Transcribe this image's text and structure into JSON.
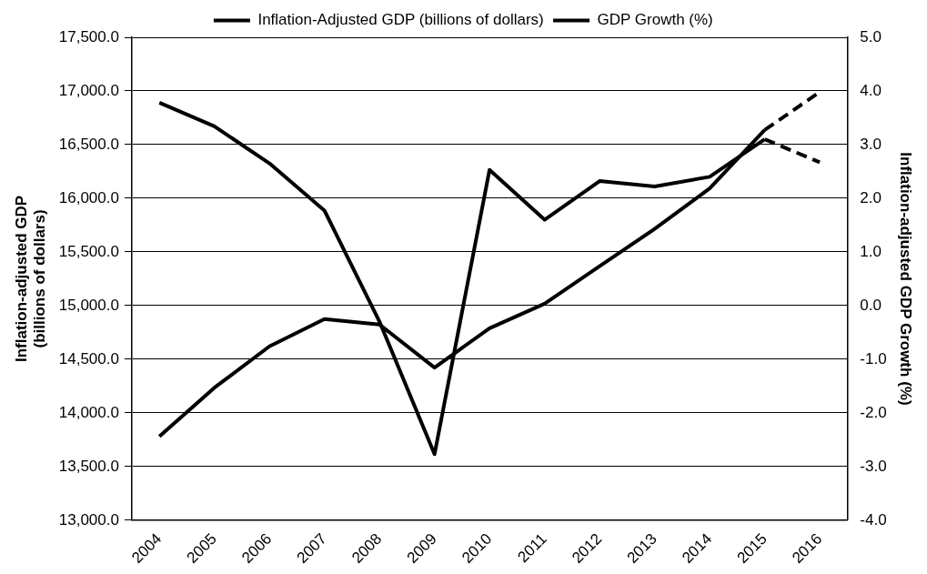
{
  "chart_data": {
    "type": "line",
    "categories": [
      "2004",
      "2005",
      "2006",
      "2007",
      "2008",
      "2009",
      "2010",
      "2011",
      "2012",
      "2013",
      "2014",
      "2015",
      "2016"
    ],
    "ylabel": "Inflation-adjusted GDP (billions of dollars)",
    "y2label": "Inflation-adjusted GDP Growth (%)",
    "ylim": [
      13000,
      17500
    ],
    "yticks": [
      {
        "value": 13000,
        "label": "13,000.0"
      },
      {
        "value": 13500,
        "label": "13,500.0"
      },
      {
        "value": 14000,
        "label": "14,000.0"
      },
      {
        "value": 14500,
        "label": "14,500.0"
      },
      {
        "value": 15000,
        "label": "15,000.0"
      },
      {
        "value": 15500,
        "label": "15,500.0"
      },
      {
        "value": 16000,
        "label": "16,000.0"
      },
      {
        "value": 16500,
        "label": "16,500.0"
      },
      {
        "value": 17000,
        "label": "17,000.0"
      },
      {
        "value": 17500,
        "label": "17,500.0"
      }
    ],
    "y2lim": [
      -4,
      5
    ],
    "y2ticks": [
      {
        "value": -4,
        "label": "-4.0"
      },
      {
        "value": -3,
        "label": "-3.0"
      },
      {
        "value": -2,
        "label": "-2.0"
      },
      {
        "value": -1,
        "label": "-1.0"
      },
      {
        "value": 0,
        "label": "0.0"
      },
      {
        "value": 1,
        "label": "1.0"
      },
      {
        "value": 2,
        "label": "2.0"
      },
      {
        "value": 3,
        "label": "3.0"
      },
      {
        "value": 4,
        "label": "4.0"
      },
      {
        "value": 5,
        "label": "5.0"
      }
    ],
    "grid": "y",
    "legend": "top",
    "marker": "none",
    "series": [
      {
        "name": "Inflation-Adjusted GDP (billions of dollars)",
        "color": "#000000",
        "values": [
          13780,
          14235,
          14620,
          14874,
          14823,
          14422,
          14789,
          15017,
          15367,
          15714,
          16092,
          16636,
          null
        ]
      },
      {
        "name": "GDP Growth (%)",
        "color": "#000000",
        "axis": "y2",
        "values": [
          3.78,
          3.34,
          2.65,
          1.77,
          -0.3,
          -2.77,
          2.53,
          1.6,
          2.32,
          2.22,
          2.4,
          3.1,
          null
        ]
      },
      {
        "color": "#000000",
        "line_style": "dashed",
        "values": [
          null,
          null,
          null,
          null,
          null,
          null,
          null,
          null,
          null,
          null,
          null,
          16636,
          16990
        ]
      },
      {
        "color": "#000000",
        "line_style": "dashed",
        "axis": "y2",
        "values": [
          null,
          null,
          null,
          null,
          null,
          null,
          null,
          null,
          null,
          null,
          null,
          3.1,
          2.67
        ]
      }
    ]
  }
}
